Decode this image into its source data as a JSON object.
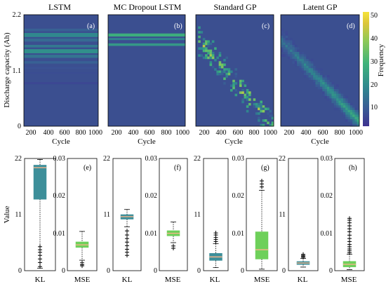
{
  "colors": {
    "heat_low": "#3b4f90",
    "heat_high": "#f2df3b",
    "box_kl": "#3d8f9a",
    "box_mse": "#6ed05a",
    "median": "#f5b48a",
    "outlier": "#000000"
  },
  "colorbar": {
    "label": "Frequency",
    "ticks": [
      "10",
      "20",
      "30",
      "40",
      "50"
    ],
    "range": [
      0,
      50
    ]
  },
  "chart_data": [
    {
      "type": "heatmap",
      "panel": "(a)",
      "title": "LSTM",
      "xlabel": "Cycle",
      "ylabel": "Discharge capacity (Ah)",
      "xticks": [
        "200",
        "400",
        "600",
        "800",
        "1000"
      ],
      "yticks": [
        "0",
        "1.1",
        "2.2"
      ],
      "xlim": [
        0,
        1000
      ],
      "ylim": [
        0,
        2.2
      ],
      "bands": [
        {
          "y": 1.9,
          "h": 0.05,
          "v": 9
        },
        {
          "y": 1.8,
          "h": 0.08,
          "v": 17
        },
        {
          "y": 1.7,
          "h": 0.06,
          "v": 11
        },
        {
          "y": 1.58,
          "h": 0.05,
          "v": 14
        },
        {
          "y": 1.48,
          "h": 0.08,
          "v": 19
        },
        {
          "y": 1.38,
          "h": 0.06,
          "v": 13
        },
        {
          "y": 1.26,
          "h": 0.05,
          "v": 9
        },
        {
          "y": 1.15,
          "h": 0.04,
          "v": 6
        },
        {
          "y": 1.05,
          "h": 0.03,
          "v": 5
        },
        {
          "y": 0.85,
          "h": 0.04,
          "v": 4
        }
      ]
    },
    {
      "type": "heatmap",
      "panel": "(b)",
      "title": "MC Dropout LSTM",
      "xlabel": "Cycle",
      "xticks": [
        "200",
        "400",
        "600",
        "800",
        "1000"
      ],
      "xlim": [
        0,
        1000
      ],
      "ylim": [
        0,
        2.2
      ],
      "bands": [
        {
          "y": 1.8,
          "h": 0.06,
          "v": 26
        },
        {
          "y": 1.72,
          "h": 0.04,
          "v": 16
        },
        {
          "y": 1.61,
          "h": 0.05,
          "v": 21
        }
      ]
    },
    {
      "type": "heatmap",
      "panel": "(c)",
      "title": "Standard GP",
      "xlabel": "Cycle",
      "xticks": [
        "200",
        "400",
        "600",
        "800",
        "1000"
      ],
      "xlim": [
        0,
        1000
      ],
      "ylim": [
        0,
        2.2
      ],
      "trend": {
        "from": [
          60,
          1.65
        ],
        "to": [
          980,
          0.05
        ],
        "spread": 0.28,
        "style": "scatter"
      }
    },
    {
      "type": "heatmap",
      "panel": "(d)",
      "title": "Latent GP",
      "xlabel": "Cycle",
      "xticks": [
        "200",
        "400",
        "600",
        "800",
        "1000"
      ],
      "xlim": [
        0,
        1000
      ],
      "ylim": [
        0,
        2.2
      ],
      "trend": {
        "from": [
          40,
          1.65
        ],
        "to": [
          980,
          0.12
        ],
        "spread": 0.22,
        "style": "smooth"
      }
    }
  ],
  "box_groups": [
    {
      "panel": "(e)",
      "kl": {
        "q1": 14.0,
        "median": 20.2,
        "q3": 20.7,
        "wlo": 0.5,
        "whi": 21.8,
        "outliers": [
          0.8,
          1.6,
          2.3,
          3.0,
          3.6,
          4.1,
          4.7
        ]
      },
      "mse": {
        "q1": 0.0062,
        "median": 0.0069,
        "q3": 0.0077,
        "wlo": 0.0028,
        "whi": 0.0105,
        "outliers": [
          0.0021,
          0.0016,
          0.0013
        ]
      }
    },
    {
      "panel": "(f)",
      "kl": {
        "q1": 10.1,
        "median": 10.6,
        "q3": 11.0,
        "wlo": 8.6,
        "whi": 12.0,
        "outliers": [
          7.8,
          7.0,
          6.3,
          5.6,
          4.9,
          4.2,
          3.6,
          3.0
        ]
      },
      "mse": {
        "q1": 0.0093,
        "median": 0.01,
        "q3": 0.0107,
        "wlo": 0.0075,
        "whi": 0.013,
        "outliers": [
          0.0066,
          0.006
        ]
      }
    },
    {
      "panel": "(g)",
      "kl": {
        "q1": 2.0,
        "median": 2.7,
        "q3": 3.4,
        "wlo": 0.6,
        "whi": 5.3,
        "outliers": [
          5.7,
          6.1,
          6.5,
          7.0,
          7.4
        ]
      },
      "mse": {
        "q1": 0.0031,
        "median": 0.0056,
        "q3": 0.0104,
        "wlo": 0.0004,
        "whi": 0.0215,
        "outliers": [
          0.0224,
          0.0232,
          0.024
        ]
      }
    },
    {
      "panel": "(h)",
      "kl": {
        "q1": 1.2,
        "median": 1.5,
        "q3": 1.8,
        "wlo": 0.7,
        "whi": 2.4,
        "outliers": [
          2.6,
          2.8,
          3.0,
          3.2
        ]
      },
      "mse": {
        "q1": 0.001,
        "median": 0.0017,
        "q3": 0.0025,
        "wlo": 0.0003,
        "whi": 0.0044,
        "outliers": [
          0.0048,
          0.0053,
          0.0058,
          0.0064,
          0.007,
          0.0078,
          0.0086,
          0.0095,
          0.0104,
          0.0112,
          0.012,
          0.0128,
          0.0135,
          0.014
        ]
      }
    }
  ],
  "box_axes": {
    "ylabel": "Value",
    "kl_label": "KL",
    "mse_label": "MSE",
    "kl_range": [
      0,
      22
    ],
    "kl_ticks": [
      "0",
      "11",
      "22"
    ],
    "mse_range": [
      0,
      0.03
    ],
    "mse_ticks": [
      "0",
      "0.01",
      "0.02",
      "0.03"
    ]
  }
}
